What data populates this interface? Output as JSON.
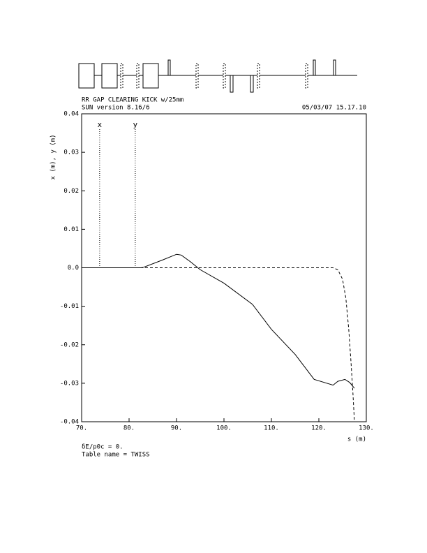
{
  "chart_data": {
    "type": "line",
    "title": "RR GAP CLEARING KICK w/25mm",
    "subtitle": "SUN version 8.16/6",
    "date": "05/03/07  15.17.10",
    "ylabel": "x (m), y (m)",
    "xlabel": "s (m)",
    "footnotes": [
      "δE/p0c = 0.",
      "Table name = TWISS"
    ],
    "markers": [
      {
        "label": "x",
        "s": 73.8
      },
      {
        "label": "y",
        "s": 81.3
      }
    ],
    "xlim": [
      70,
      130
    ],
    "xticks": [
      {
        "value": 70,
        "label": "70."
      },
      {
        "value": 80,
        "label": "80."
      },
      {
        "value": 90,
        "label": "90."
      },
      {
        "value": 100,
        "label": "100."
      },
      {
        "value": 110,
        "label": "110."
      },
      {
        "value": 120,
        "label": "120."
      },
      {
        "value": 130,
        "label": "130."
      }
    ],
    "ylim": [
      -0.04,
      0.04
    ],
    "yticks": [
      0.04,
      0.03,
      0.02,
      0.01,
      {
        "value": 0,
        "label": "0.0"
      },
      -0.01,
      -0.02,
      -0.03,
      -0.04
    ],
    "series": [
      {
        "name": "x",
        "color": "#000000",
        "dash": false,
        "x": [
          70,
          82.5,
          83,
          87,
          90,
          91,
          93,
          95,
          100,
          106,
          110,
          115,
          119,
          123,
          124,
          125.5,
          126.5,
          127.5
        ],
        "values": [
          0,
          0,
          0.0001,
          0.002,
          0.0035,
          0.0033,
          0.0015,
          -0.0005,
          -0.004,
          -0.0095,
          -0.016,
          -0.0225,
          -0.029,
          -0.0305,
          -0.0295,
          -0.029,
          -0.0298,
          -0.0313
        ]
      },
      {
        "name": "y",
        "color": "#000000",
        "dash": true,
        "x": [
          70,
          123,
          124,
          125,
          125.7,
          126.3,
          126.8,
          127.2,
          127.5
        ],
        "values": [
          0,
          0,
          -0.0005,
          -0.003,
          -0.008,
          -0.016,
          -0.025,
          -0.033,
          -0.04
        ]
      }
    ]
  }
}
